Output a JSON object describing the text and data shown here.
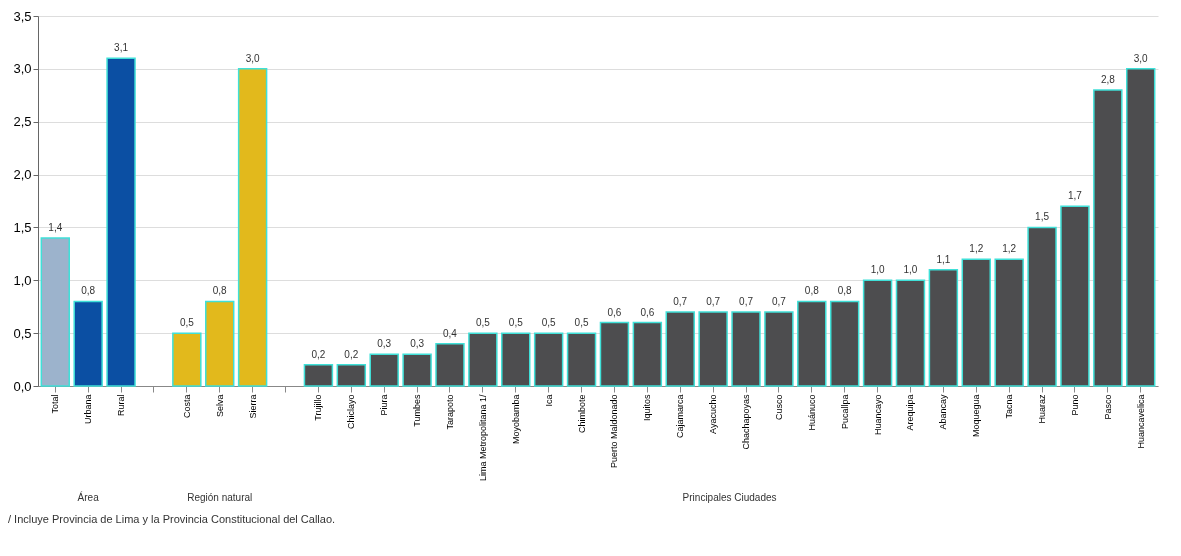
{
  "chart_data": {
    "type": "bar",
    "categories": [
      "Total",
      "Urbana",
      "Rural",
      null,
      "Costa",
      "Selva",
      "Sierra",
      null,
      "Trujillo",
      "Chiclayo",
      "Piura",
      "Tumbes",
      "Tarapoto",
      "Lima Metropolitana 1/",
      "Moyobamba",
      "Ica",
      "Chimbote",
      "Puerto Maldonado",
      "Iquitos",
      "Cajamarca",
      "Ayacucho",
      "Chachapoyas",
      "Cusco",
      "Huánuco",
      "Pucallpa",
      "Huancayo",
      "Arequipa",
      "Abancay",
      "Moquegua",
      "Tacna",
      "Huaraz",
      "Puno",
      "Pasco",
      "Huancavelica"
    ],
    "values": [
      1.4,
      0.8,
      3.1,
      null,
      0.5,
      0.8,
      3.0,
      null,
      0.2,
      0.2,
      0.3,
      0.3,
      0.4,
      0.5,
      0.5,
      0.5,
      0.5,
      0.6,
      0.6,
      0.7,
      0.7,
      0.7,
      0.7,
      0.8,
      0.8,
      1.0,
      1.0,
      1.1,
      1.2,
      1.2,
      1.5,
      1.7,
      2.8,
      3.0
    ],
    "value_labels": [
      "1,4",
      "0,8",
      "3,1",
      null,
      "0,5",
      "0,8",
      "3,0",
      null,
      "0,2",
      "0,2",
      "0,3",
      "0,3",
      "0,4",
      "0,5",
      "0,5",
      "0,5",
      "0,5",
      "0,6",
      "0,6",
      "0,7",
      "0,7",
      "0,7",
      "0,7",
      "0,8",
      "0,8",
      "1,0",
      "1,0",
      "1,1",
      "1,2",
      "1,2",
      "1,5",
      "1,7",
      "2,8",
      "3,0"
    ],
    "colors": [
      "#9cb3cc",
      "#0b4fa3",
      "#0b4fa3",
      null,
      "#e2b91c",
      "#e2b91c",
      "#e2b91c",
      null,
      "#4d4d4f",
      "#4d4d4f",
      "#4d4d4f",
      "#4d4d4f",
      "#4d4d4f",
      "#4d4d4f",
      "#4d4d4f",
      "#4d4d4f",
      "#4d4d4f",
      "#4d4d4f",
      "#4d4d4f",
      "#4d4d4f",
      "#4d4d4f",
      "#4d4d4f",
      "#4d4d4f",
      "#4d4d4f",
      "#4d4d4f",
      "#4d4d4f",
      "#4d4d4f",
      "#4d4d4f",
      "#4d4d4f",
      "#4d4d4f",
      "#4d4d4f",
      "#4d4d4f",
      "#4d4d4f",
      "#4d4d4f"
    ],
    "ylim": [
      0,
      3.5
    ],
    "yticks": [
      {
        "value": 0,
        "label": "0,0"
      },
      {
        "value": 0.5,
        "label": "0,5"
      },
      {
        "value": 1.0,
        "label": "1,0"
      },
      {
        "value": 1.5,
        "label": "1,5"
      },
      {
        "value": 2.0,
        "label": "2,0"
      },
      {
        "value": 2.5,
        "label": "2,5"
      },
      {
        "value": 3.0,
        "label": "3,0"
      },
      {
        "value": 3.5,
        "label": "3,5"
      }
    ],
    "grid": "y",
    "annotations": [
      "Área",
      "Región natural",
      "Principales Ciudades",
      "/ Incluye Provincia de Lima y la Provincia Constitucional del Callao."
    ]
  }
}
